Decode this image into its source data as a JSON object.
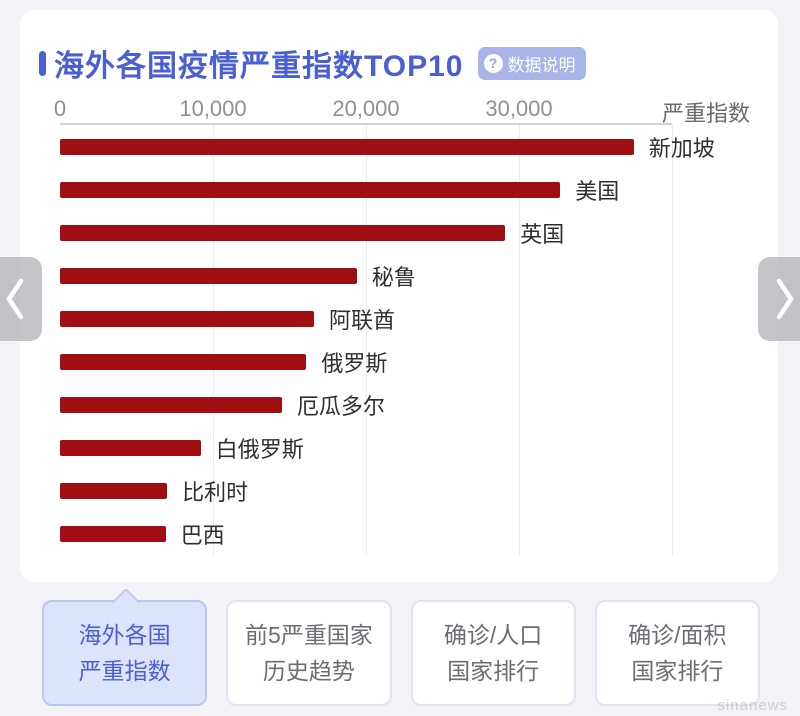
{
  "header": {
    "title": "海外各国疫情严重指数TOP10",
    "info_icon": "?",
    "info_badge_label": "数据说明"
  },
  "chart_data": {
    "type": "bar",
    "orientation": "horizontal",
    "title": "海外各国疫情严重指数TOP10",
    "axis_title": "严重指数",
    "x_ticks": [
      "0",
      "10,000",
      "20,000",
      "30,000"
    ],
    "xlim": [
      0,
      40000
    ],
    "grid": true,
    "bar_color": "#a00d12",
    "categories": [
      "新加坡",
      "美国",
      "英国",
      "秘鲁",
      "阿联酋",
      "俄罗斯",
      "厄瓜多尔",
      "白俄罗斯",
      "比利时",
      "巴西"
    ],
    "values": [
      37500,
      32700,
      29100,
      19400,
      16600,
      16100,
      14500,
      9200,
      7000,
      6900
    ]
  },
  "carousel": {
    "prev": "previous",
    "next": "next"
  },
  "tabs": [
    {
      "lines": [
        "海外各国",
        "严重指数"
      ],
      "active": true
    },
    {
      "lines": [
        "前5严重国家",
        "历史趋势"
      ],
      "active": false
    },
    {
      "lines": [
        "确诊/人口",
        "国家排行"
      ],
      "active": false
    },
    {
      "lines": [
        "确诊/面积",
        "国家排行"
      ],
      "active": false
    }
  ],
  "colors": {
    "accent_blue": "#4a5fd3",
    "bar_red": "#a00d12",
    "badge_bg": "#a9b4e8",
    "active_tab_bg": "#dce4fc"
  },
  "watermark": "sinanews"
}
